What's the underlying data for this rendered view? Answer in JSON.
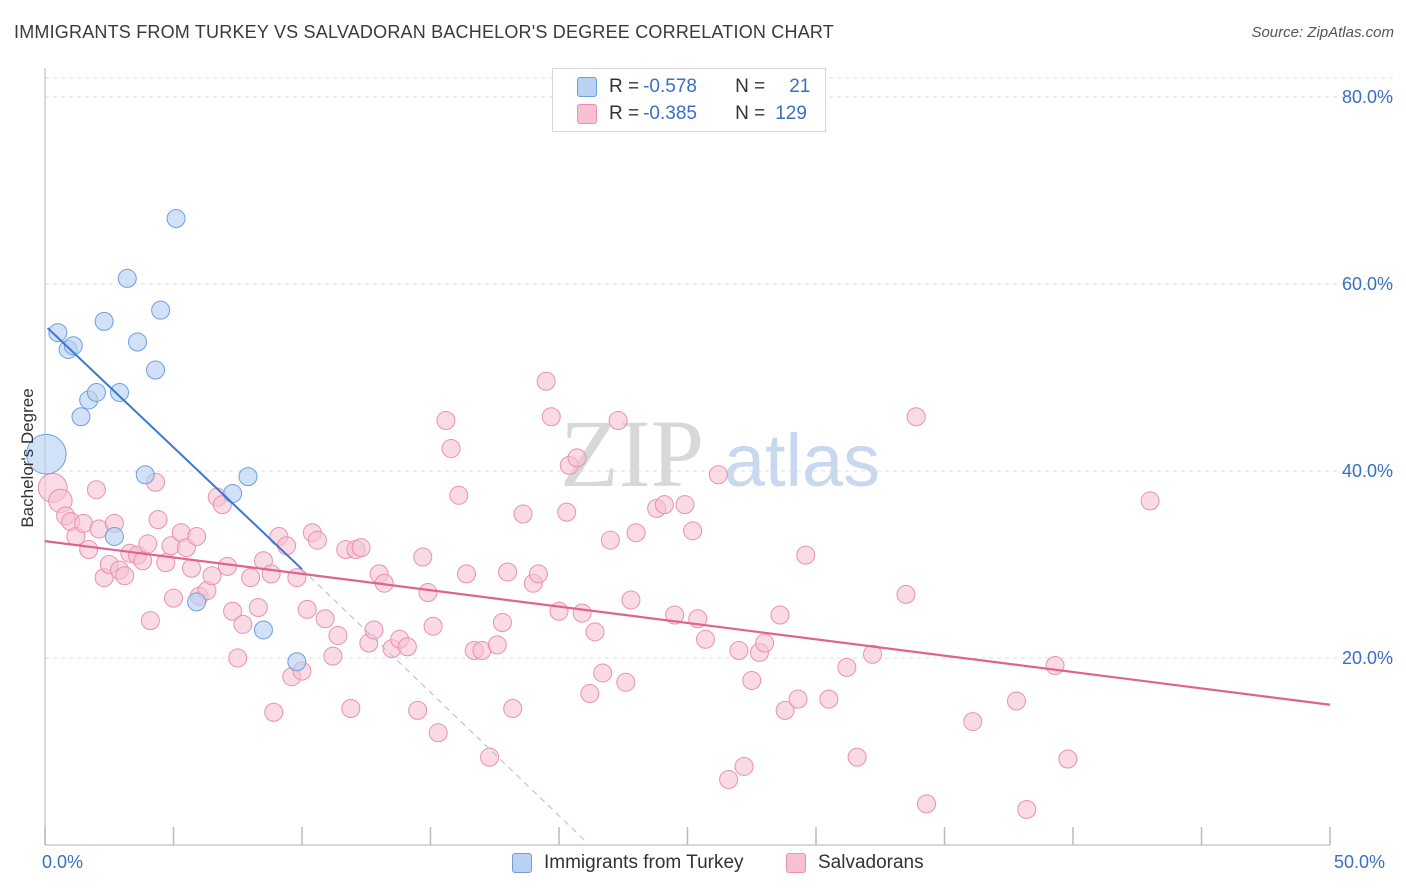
{
  "title": "IMMIGRANTS FROM TURKEY VS SALVADORAN BACHELOR'S DEGREE CORRELATION CHART",
  "source": "Source: ZipAtlas.com",
  "watermark": {
    "zip": "ZIP",
    "atlas": "atlas"
  },
  "colors": {
    "blue_fill": "#b9d1f2",
    "blue_stroke": "#6f9ee0",
    "blue_line": "#3a77d4",
    "pink_fill": "#f7c1d2",
    "pink_stroke": "#e991ae",
    "pink_line": "#e0628e",
    "axis_text": "#3a6fc4",
    "grid": "#dddddd"
  },
  "legend": {
    "rows": [
      {
        "r_label": "R =",
        "r_value": "-0.578",
        "n_label": "N =",
        "n_value": "21"
      },
      {
        "r_label": "R =",
        "r_value": "-0.385",
        "n_label": "N =",
        "n_value": "129"
      }
    ]
  },
  "bottom_legend": [
    "Immigrants from Turkey",
    "Salvadorans"
  ],
  "chart_data": {
    "type": "scatter",
    "title": "IMMIGRANTS FROM TURKEY VS SALVADORAN BACHELOR'S DEGREE CORRELATION CHART",
    "xlabel": "",
    "ylabel": "Bachelor's Degree",
    "xlim": [
      0,
      50
    ],
    "ylim": [
      0,
      80
    ],
    "x_tick_labels": [
      "0.0%",
      "50.0%"
    ],
    "y_tick_labels": [
      "20.0%",
      "40.0%",
      "60.0%",
      "80.0%"
    ],
    "y_ticks": [
      20,
      40,
      60,
      80
    ],
    "grid": true,
    "series": [
      {
        "name": "Immigrants from Turkey",
        "r": -0.578,
        "n": 21,
        "trend": {
          "x0": 0.1,
          "y0": 55.3,
          "x1": 10,
          "y1": 29.5,
          "dash_to_x": 21,
          "dash_to_y": 0.5
        },
        "points": [
          [
            0.05,
            41.8,
            2.2
          ],
          [
            0.5,
            54.8,
            1
          ],
          [
            0.9,
            53.0,
            1
          ],
          [
            1.1,
            53.4,
            1
          ],
          [
            1.4,
            45.8,
            1
          ],
          [
            1.7,
            47.6,
            1
          ],
          [
            2.0,
            48.4,
            1
          ],
          [
            2.3,
            56.0,
            1
          ],
          [
            2.7,
            33.0,
            1
          ],
          [
            2.9,
            48.4,
            1
          ],
          [
            3.2,
            60.6,
            1
          ],
          [
            3.6,
            53.8,
            1
          ],
          [
            3.9,
            39.6,
            1
          ],
          [
            4.3,
            50.8,
            1
          ],
          [
            4.5,
            57.2,
            1
          ],
          [
            5.1,
            67.0,
            1
          ],
          [
            5.9,
            26.0,
            1
          ],
          [
            7.3,
            37.6,
            1
          ],
          [
            7.9,
            39.4,
            1
          ],
          [
            8.5,
            23.0,
            1
          ],
          [
            9.8,
            19.6,
            1
          ]
        ]
      },
      {
        "name": "Salvadorans",
        "r": -0.385,
        "n": 129,
        "trend": {
          "x0": 0,
          "y0": 32.5,
          "x1": 50,
          "y1": 15.0
        },
        "points": [
          [
            0.3,
            38.2,
            1.6
          ],
          [
            0.6,
            36.8,
            1.3
          ],
          [
            0.8,
            35.2,
            1
          ],
          [
            1.0,
            34.6,
            1
          ],
          [
            1.2,
            33.0,
            1
          ],
          [
            1.5,
            34.4,
            1
          ],
          [
            1.7,
            31.6,
            1
          ],
          [
            2.0,
            38.0,
            1
          ],
          [
            2.1,
            33.8,
            1
          ],
          [
            2.3,
            28.6,
            1
          ],
          [
            2.5,
            30.0,
            1
          ],
          [
            2.7,
            34.4,
            1
          ],
          [
            2.9,
            29.4,
            1
          ],
          [
            3.1,
            28.8,
            1
          ],
          [
            3.3,
            31.2,
            1
          ],
          [
            3.6,
            31.0,
            1
          ],
          [
            3.8,
            30.4,
            1
          ],
          [
            4.0,
            32.2,
            1
          ],
          [
            4.1,
            24.0,
            1
          ],
          [
            4.3,
            38.8,
            1
          ],
          [
            4.4,
            34.8,
            1
          ],
          [
            4.7,
            30.2,
            1
          ],
          [
            4.9,
            32.0,
            1
          ],
          [
            5.0,
            26.4,
            1
          ],
          [
            5.3,
            33.4,
            1
          ],
          [
            5.5,
            31.8,
            1
          ],
          [
            5.7,
            29.6,
            1
          ],
          [
            5.9,
            33.0,
            1
          ],
          [
            6.0,
            26.6,
            1
          ],
          [
            6.3,
            27.2,
            1
          ],
          [
            6.5,
            28.8,
            1
          ],
          [
            6.7,
            37.2,
            1
          ],
          [
            6.9,
            36.4,
            1
          ],
          [
            7.1,
            29.8,
            1
          ],
          [
            7.3,
            25.0,
            1
          ],
          [
            7.5,
            20.0,
            1
          ],
          [
            7.7,
            23.6,
            1
          ],
          [
            8.0,
            28.6,
            1
          ],
          [
            8.3,
            25.4,
            1
          ],
          [
            8.5,
            30.4,
            1
          ],
          [
            8.8,
            29.0,
            1
          ],
          [
            8.9,
            14.2,
            1
          ],
          [
            9.1,
            33.0,
            1
          ],
          [
            9.4,
            32.0,
            1
          ],
          [
            9.6,
            18.0,
            1
          ],
          [
            9.8,
            28.6,
            1
          ],
          [
            10.0,
            18.6,
            1
          ],
          [
            10.2,
            25.2,
            1
          ],
          [
            10.4,
            33.4,
            1
          ],
          [
            10.6,
            32.6,
            1
          ],
          [
            10.9,
            24.2,
            1
          ],
          [
            11.2,
            20.2,
            1
          ],
          [
            11.4,
            22.4,
            1
          ],
          [
            11.7,
            31.6,
            1
          ],
          [
            11.9,
            14.6,
            1
          ],
          [
            12.1,
            31.6,
            1
          ],
          [
            12.3,
            31.8,
            1
          ],
          [
            12.6,
            21.6,
            1
          ],
          [
            12.8,
            23.0,
            1
          ],
          [
            13.0,
            29.0,
            1
          ],
          [
            13.2,
            28.0,
            1
          ],
          [
            13.5,
            21.0,
            1
          ],
          [
            13.8,
            22.0,
            1
          ],
          [
            14.1,
            21.2,
            1
          ],
          [
            14.5,
            14.4,
            1
          ],
          [
            14.7,
            30.8,
            1
          ],
          [
            14.9,
            27.0,
            1
          ],
          [
            15.1,
            23.4,
            1
          ],
          [
            15.3,
            12.0,
            1
          ],
          [
            15.6,
            45.4,
            1
          ],
          [
            15.8,
            42.4,
            1
          ],
          [
            16.1,
            37.4,
            1
          ],
          [
            16.4,
            29.0,
            1
          ],
          [
            16.7,
            20.8,
            1
          ],
          [
            17.0,
            20.8,
            1
          ],
          [
            17.3,
            9.4,
            1
          ],
          [
            17.6,
            21.4,
            1
          ],
          [
            17.8,
            23.8,
            1
          ],
          [
            18.0,
            29.2,
            1
          ],
          [
            18.2,
            14.6,
            1
          ],
          [
            18.6,
            35.4,
            1
          ],
          [
            19.0,
            28.0,
            1
          ],
          [
            19.2,
            29.0,
            1
          ],
          [
            19.5,
            49.6,
            1
          ],
          [
            19.7,
            45.8,
            1
          ],
          [
            20.0,
            25.0,
            1
          ],
          [
            20.3,
            35.6,
            1
          ],
          [
            20.4,
            40.6,
            1
          ],
          [
            20.7,
            41.4,
            1
          ],
          [
            20.9,
            24.8,
            1
          ],
          [
            21.2,
            16.2,
            1
          ],
          [
            21.4,
            22.8,
            1
          ],
          [
            21.7,
            18.4,
            1
          ],
          [
            22.0,
            32.6,
            1
          ],
          [
            22.3,
            45.4,
            1
          ],
          [
            22.6,
            17.4,
            1
          ],
          [
            22.8,
            26.2,
            1
          ],
          [
            23.0,
            33.4,
            1
          ],
          [
            23.8,
            36.0,
            1
          ],
          [
            24.1,
            36.4,
            1
          ],
          [
            24.5,
            24.6,
            1
          ],
          [
            24.9,
            36.4,
            1
          ],
          [
            25.2,
            33.6,
            1
          ],
          [
            25.4,
            24.2,
            1
          ],
          [
            25.7,
            22.0,
            1
          ],
          [
            26.2,
            39.6,
            1
          ],
          [
            26.6,
            7.0,
            1
          ],
          [
            27.0,
            20.8,
            1
          ],
          [
            27.2,
            8.4,
            1
          ],
          [
            27.5,
            17.6,
            1
          ],
          [
            27.8,
            20.6,
            1
          ],
          [
            28.0,
            21.6,
            1
          ],
          [
            28.6,
            24.6,
            1
          ],
          [
            28.8,
            14.4,
            1
          ],
          [
            29.3,
            15.6,
            1
          ],
          [
            29.6,
            31.0,
            1
          ],
          [
            30.5,
            15.6,
            1
          ],
          [
            31.2,
            19.0,
            1
          ],
          [
            31.6,
            9.4,
            1
          ],
          [
            32.2,
            20.4,
            1
          ],
          [
            33.5,
            26.8,
            1
          ],
          [
            33.9,
            45.8,
            1
          ],
          [
            34.3,
            4.4,
            1
          ],
          [
            36.1,
            13.2,
            1
          ],
          [
            37.8,
            15.4,
            1
          ],
          [
            38.2,
            3.8,
            1
          ],
          [
            39.3,
            19.2,
            1
          ],
          [
            39.8,
            9.2,
            1
          ],
          [
            43.0,
            36.8,
            1
          ]
        ]
      }
    ]
  }
}
